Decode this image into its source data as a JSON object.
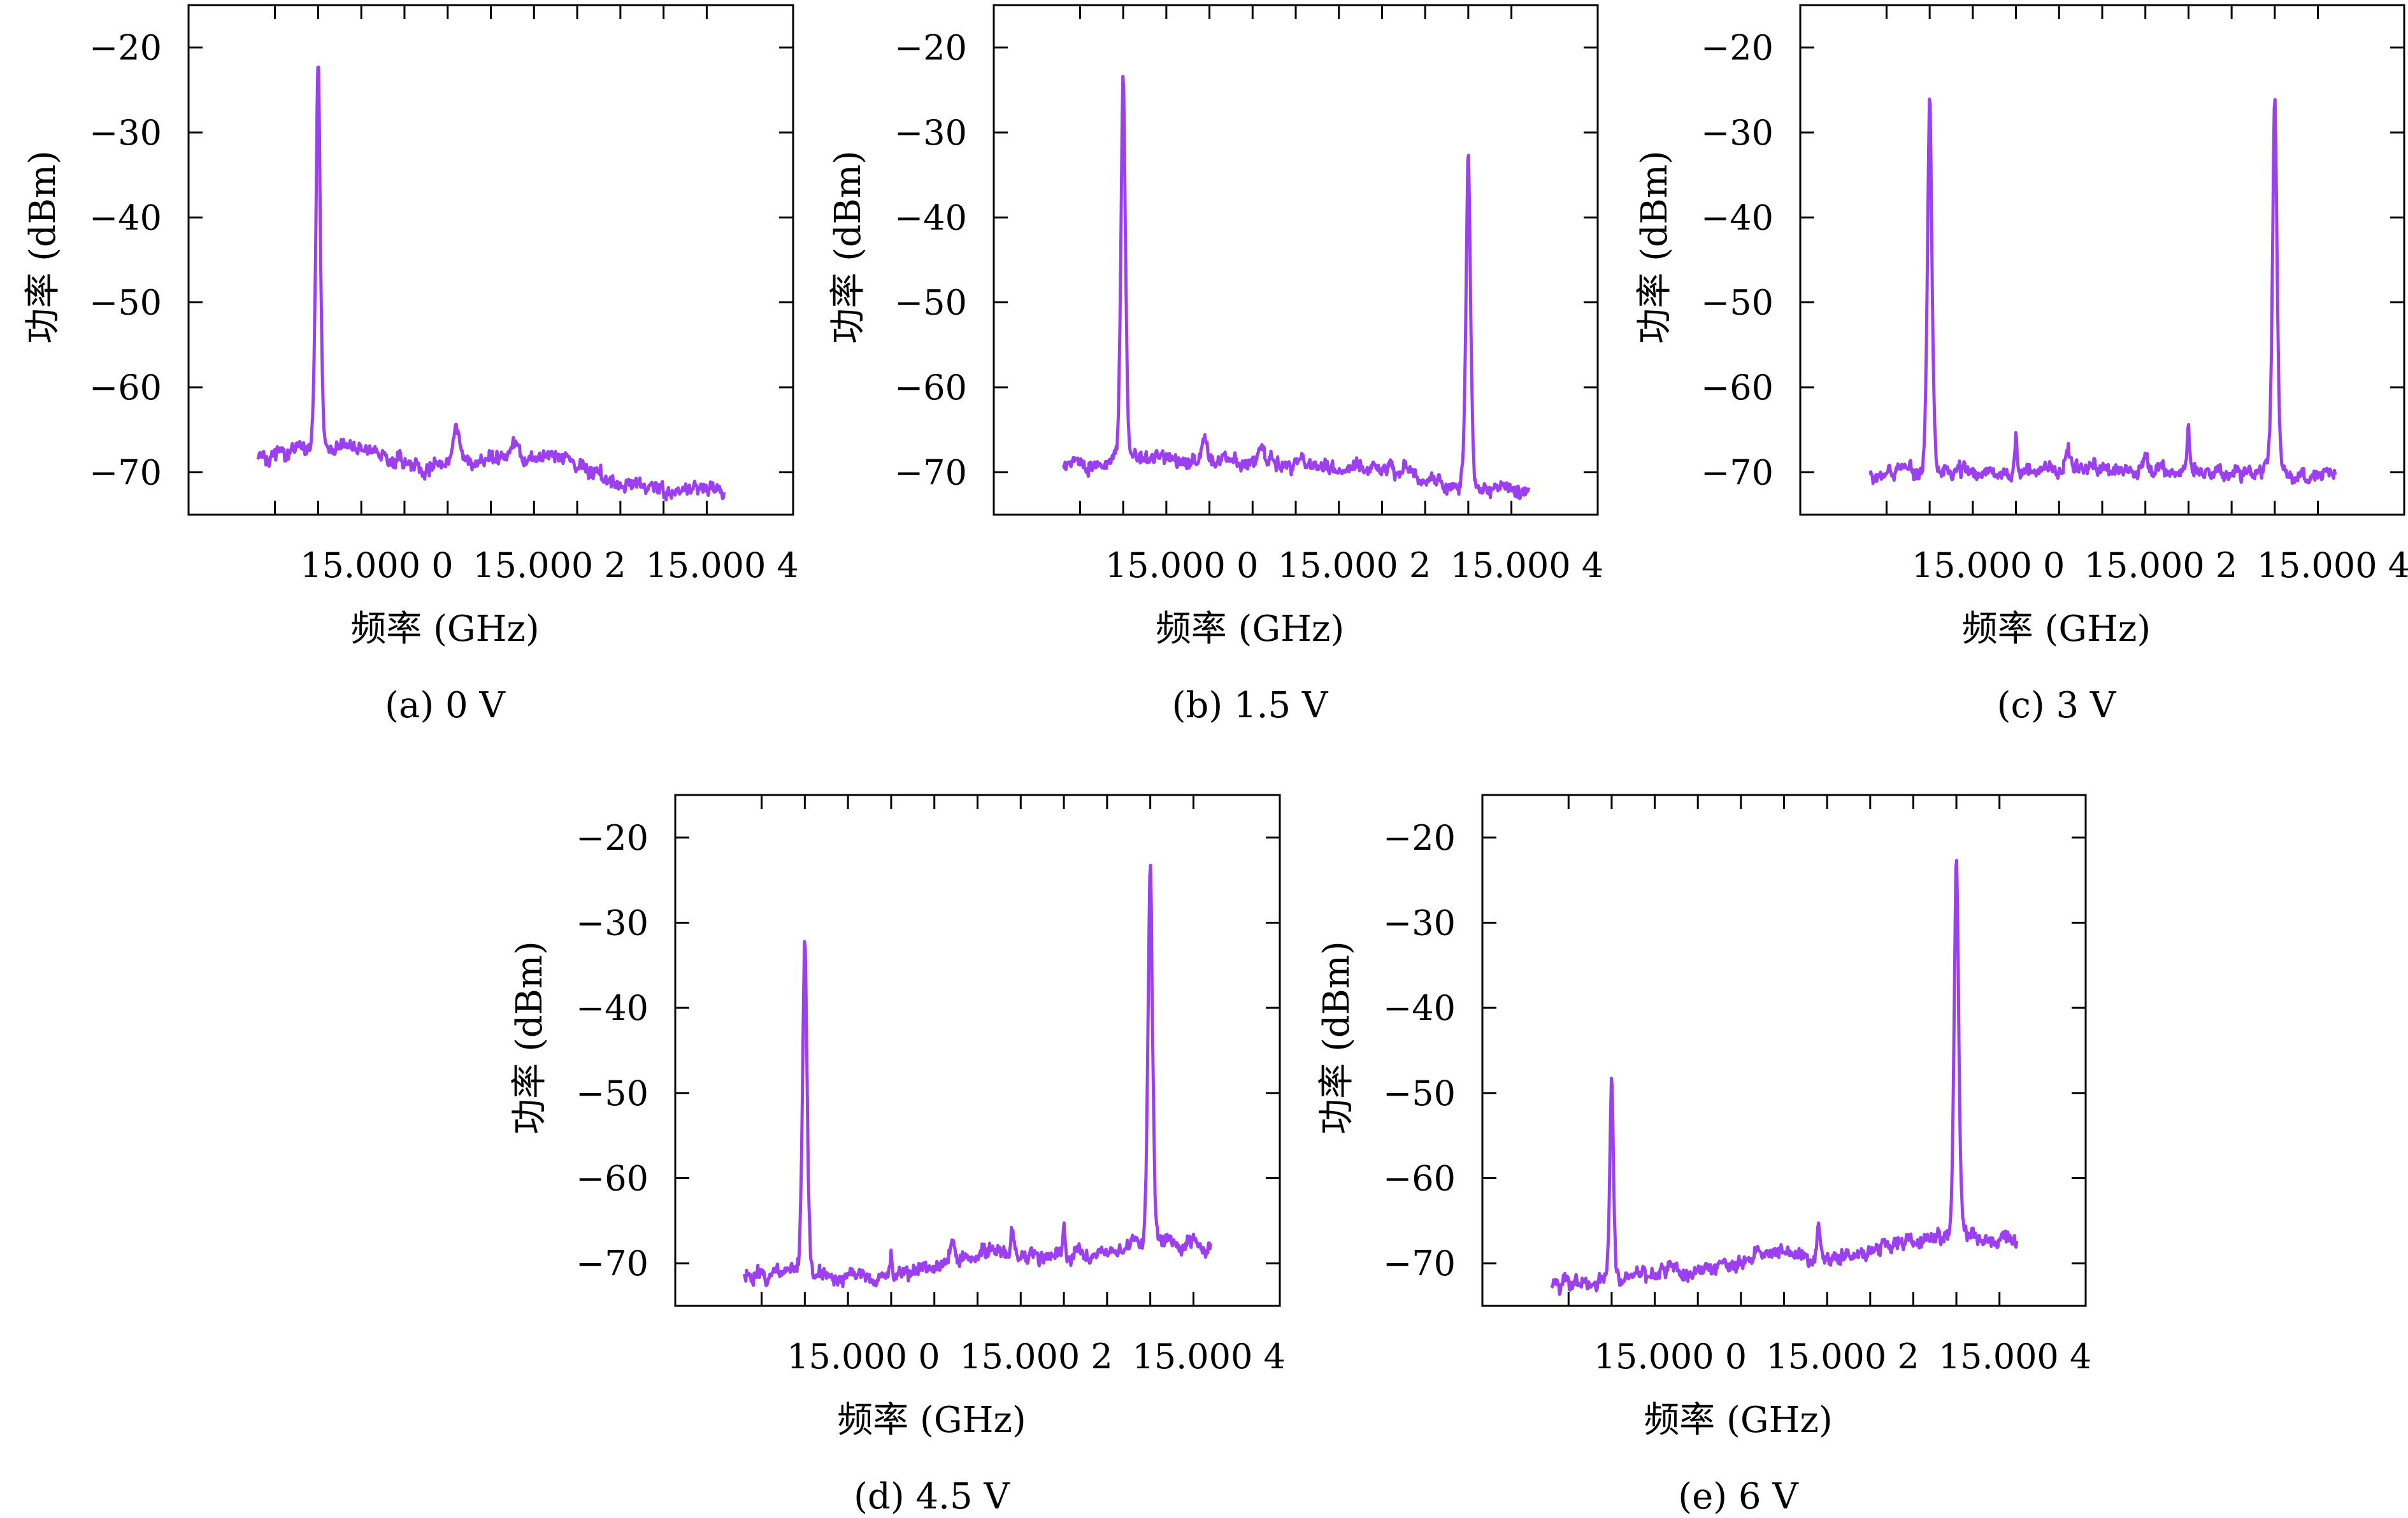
{
  "figure": {
    "line_color": "#9b3ff0",
    "panels": [
      {
        "caption": "(a) 0 V"
      },
      {
        "caption": "(b) 1.5 V"
      },
      {
        "caption": "(c) 3 V"
      },
      {
        "caption": "(d) 4.5 V"
      },
      {
        "caption": "(e) 6 V"
      }
    ]
  },
  "chart_data": [
    {
      "type": "line",
      "caption": "(a) 0 V",
      "xlabel": "频率 (GHz)",
      "ylabel": "功率 (dBm)",
      "xticks": [
        14.99995,
        15.0,
        15.00005,
        15.0001,
        15.00015,
        15.0002,
        15.00025,
        15.0003,
        15.00035,
        15.0004,
        15.00045
      ],
      "xtick_labels": [
        "15.000 0",
        "15.000 2",
        "15.000 4"
      ],
      "xtick_label_positions": [
        15.0,
        15.0002,
        15.0004
      ],
      "xlim": [
        14.99985,
        15.00055
      ],
      "yticks": [
        -70,
        -60,
        -50,
        -40,
        -30,
        -20
      ],
      "ylim": [
        -75,
        -15
      ],
      "grid": false,
      "noise_seed": 11,
      "x_range": [
        14.99993,
        15.00047
      ],
      "baseline": [
        [
          14.99993,
          -68
        ],
        [
          15.00006,
          -67.5
        ],
        [
          15.00012,
          -69.5
        ],
        [
          15.0002,
          -68.5
        ],
        [
          15.00027,
          -68
        ],
        [
          15.00033,
          -71
        ],
        [
          15.0004,
          -72
        ],
        [
          15.00047,
          -72
        ]
      ],
      "peaks": [
        {
          "x": 15.0,
          "y": -21.5,
          "w": 2.8e-06
        },
        {
          "x": 15.00016,
          "y": -65,
          "w": 4e-06
        },
        {
          "x": 15.00023,
          "y": -67,
          "w": 4e-06
        }
      ]
    },
    {
      "type": "line",
      "caption": "(b) 1.5 V",
      "xlabel": "频率 (GHz)",
      "ylabel": "功率 (dBm)",
      "xticks": [
        14.99995,
        15.0,
        15.00005,
        15.0001,
        15.00015,
        15.0002,
        15.00025,
        15.0003,
        15.00035,
        15.0004,
        15.00045
      ],
      "xtick_labels": [
        "15.000 0",
        "15.000 2",
        "15.000 4"
      ],
      "xtick_label_positions": [
        15.0,
        15.0002,
        15.0004
      ],
      "xlim": [
        14.99985,
        15.00055
      ],
      "yticks": [
        -70,
        -60,
        -50,
        -40,
        -30,
        -20
      ],
      "ylim": [
        -75,
        -15
      ],
      "grid": false,
      "noise_seed": 23,
      "x_range": [
        14.99993,
        15.00047
      ],
      "baseline": [
        [
          14.99993,
          -69
        ],
        [
          15.0001,
          -68.5
        ],
        [
          15.0002,
          -69
        ],
        [
          15.0003,
          -69.5
        ],
        [
          15.00037,
          -71.5
        ],
        [
          15.00047,
          -72
        ]
      ],
      "peaks": [
        {
          "x": 15.0,
          "y": -22.5,
          "w": 2.8e-06
        },
        {
          "x": 15.0004,
          "y": -32.5,
          "w": 2.8e-06
        },
        {
          "x": 15.000095,
          "y": -66.5,
          "w": 3e-06
        },
        {
          "x": 15.00016,
          "y": -66.5,
          "w": 4e-06
        },
        {
          "x": 15.00031,
          "y": -69,
          "w": 2e-06
        }
      ]
    },
    {
      "type": "line",
      "caption": "(c) 3 V",
      "xlabel": "频率 (GHz)",
      "ylabel": "功率 (dBm)",
      "xticks": [
        14.99995,
        15.0,
        15.00005,
        15.0001,
        15.00015,
        15.0002,
        15.00025,
        15.0003,
        15.00035,
        15.0004,
        15.00045
      ],
      "xtick_labels": [
        "15.000 0",
        "15.000 2",
        "15.000 4"
      ],
      "xtick_label_positions": [
        15.0,
        15.0002,
        15.0004
      ],
      "xlim": [
        14.99985,
        15.00055
      ],
      "yticks": [
        -70,
        -60,
        -50,
        -40,
        -30,
        -20
      ],
      "ylim": [
        -75,
        -15
      ],
      "grid": false,
      "noise_seed": 37,
      "x_range": [
        14.99993,
        15.00047
      ],
      "baseline": [
        [
          14.99993,
          -70
        ],
        [
          15.0001,
          -70
        ],
        [
          15.0002,
          -69.5
        ],
        [
          15.0003,
          -70
        ],
        [
          15.00047,
          -70.5
        ]
      ],
      "peaks": [
        {
          "x": 15.0,
          "y": -25.5,
          "w": 2.8e-06
        },
        {
          "x": 15.0004,
          "y": -26,
          "w": 2.8e-06
        },
        {
          "x": 15.0001,
          "y": -65.5,
          "w": 1.4e-06
        },
        {
          "x": 15.0003,
          "y": -65.5,
          "w": 1.4e-06
        },
        {
          "x": 15.00016,
          "y": -67.5,
          "w": 3e-06
        },
        {
          "x": 15.00025,
          "y": -68,
          "w": 3e-06
        }
      ]
    },
    {
      "type": "line",
      "caption": "(d) 4.5 V",
      "xlabel": "频率 (GHz)",
      "ylabel": "功率 (dBm)",
      "xticks": [
        14.99995,
        15.0,
        15.00005,
        15.0001,
        15.00015,
        15.0002,
        15.00025,
        15.0003,
        15.00035,
        15.0004,
        15.00045
      ],
      "xtick_labels": [
        "15.000 0",
        "15.000 2",
        "15.000 4"
      ],
      "xtick_label_positions": [
        15.0,
        15.0002,
        15.0004
      ],
      "xlim": [
        14.99985,
        15.00055
      ],
      "yticks": [
        -70,
        -60,
        -50,
        -40,
        -30,
        -20
      ],
      "ylim": [
        -75,
        -15
      ],
      "grid": false,
      "noise_seed": 51,
      "x_range": [
        14.99993,
        15.00047
      ],
      "baseline": [
        [
          14.99993,
          -71.5
        ],
        [
          15.0001,
          -71.5
        ],
        [
          15.0002,
          -69
        ],
        [
          15.0003,
          -69
        ],
        [
          15.0004,
          -68
        ],
        [
          15.00047,
          -68
        ]
      ],
      "peaks": [
        {
          "x": 15.0,
          "y": -32.5,
          "w": 2.8e-06
        },
        {
          "x": 15.0004,
          "y": -22.5,
          "w": 2.8e-06
        },
        {
          "x": 15.0001,
          "y": -69,
          "w": 1.5e-06
        },
        {
          "x": 15.00017,
          "y": -67.5,
          "w": 3e-06
        },
        {
          "x": 15.00024,
          "y": -65.5,
          "w": 2e-06
        },
        {
          "x": 15.0003,
          "y": -66,
          "w": 1.2e-06
        }
      ]
    },
    {
      "type": "line",
      "caption": "(e) 6 V",
      "xlabel": "频率 (GHz)",
      "ylabel": "功率 (dBm)",
      "xticks": [
        14.99995,
        15.0,
        15.00005,
        15.0001,
        15.00015,
        15.0002,
        15.00025,
        15.0003,
        15.00035,
        15.0004,
        15.00045
      ],
      "xtick_labels": [
        "15.000 0",
        "15.000 2",
        "15.000 4"
      ],
      "xtick_label_positions": [
        15.0,
        15.0002,
        15.0004
      ],
      "xlim": [
        14.99985,
        15.00055
      ],
      "yticks": [
        -70,
        -60,
        -50,
        -40,
        -30,
        -20
      ],
      "ylim": [
        -75,
        -15
      ],
      "grid": false,
      "noise_seed": 67,
      "x_range": [
        14.99993,
        15.00047
      ],
      "baseline": [
        [
          14.99993,
          -72.5
        ],
        [
          15.0001,
          -71
        ],
        [
          15.00017,
          -68.5
        ],
        [
          15.00025,
          -69.5
        ],
        [
          15.00033,
          -68
        ],
        [
          15.0004,
          -67
        ],
        [
          15.00047,
          -67.5
        ]
      ],
      "peaks": [
        {
          "x": 15.0,
          "y": -46.5,
          "w": 2.2e-06
        },
        {
          "x": 15.0004,
          "y": -21.5,
          "w": 2.8e-06
        },
        {
          "x": 15.00024,
          "y": -65.5,
          "w": 2e-06
        }
      ]
    }
  ]
}
